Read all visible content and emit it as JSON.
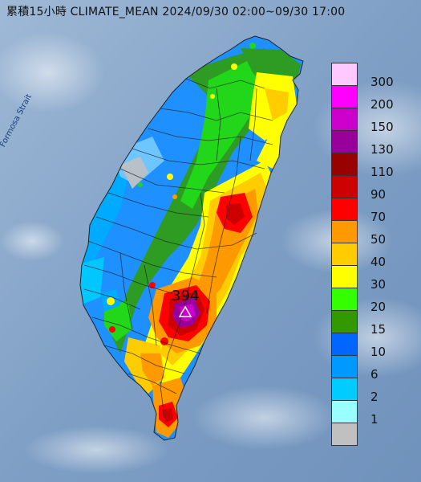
{
  "title": "累積15小時 CLIMATE_MEAN 2024/09/30 02:00~09/30 17:00",
  "strait_label": "Formosa Strait",
  "max_station_value": "394",
  "legend": {
    "items": [
      {
        "label": "300",
        "color": "#ffc8ff"
      },
      {
        "label": "200",
        "color": "#ff00ff"
      },
      {
        "label": "150",
        "color": "#cc00cc"
      },
      {
        "label": "130",
        "color": "#990099"
      },
      {
        "label": "110",
        "color": "#990000"
      },
      {
        "label": "90",
        "color": "#cc0000"
      },
      {
        "label": "70",
        "color": "#ff0000"
      },
      {
        "label": "50",
        "color": "#ff9900"
      },
      {
        "label": "40",
        "color": "#ffcc00"
      },
      {
        "label": "30",
        "color": "#ffff00"
      },
      {
        "label": "20",
        "color": "#33ff00"
      },
      {
        "label": "15",
        "color": "#339900"
      },
      {
        "label": "10",
        "color": "#0066ff"
      },
      {
        "label": "6",
        "color": "#0099ff"
      },
      {
        "label": "2",
        "color": "#00ccff"
      },
      {
        "label": "1",
        "color": "#99ffff"
      },
      {
        "label": "",
        "color": "#c0c0c0"
      }
    ]
  }
}
